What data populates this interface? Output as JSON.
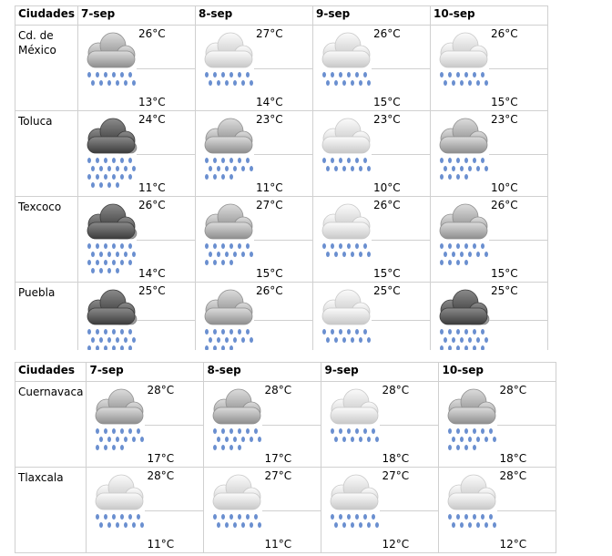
{
  "table1": {
    "header": [
      "Ciudades",
      "7-sep",
      "8-sep",
      "9-sep",
      "10-sep"
    ],
    "rows": [
      {
        "city": "Cd. de México",
        "days": [
          {
            "icon": "light-rain-cloud-icon",
            "shade": "light",
            "hi": "26°C",
            "lo": "13°C"
          },
          {
            "icon": "light-rain-cloud-icon",
            "shade": "white",
            "hi": "27°C",
            "lo": "14°C"
          },
          {
            "icon": "light-rain-cloud-icon",
            "shade": "white",
            "hi": "26°C",
            "lo": "15°C"
          },
          {
            "icon": "light-rain-cloud-icon",
            "shade": "white",
            "hi": "26°C",
            "lo": "15°C"
          }
        ]
      },
      {
        "city": "Toluca",
        "days": [
          {
            "icon": "heavy-rain-cloud-icon",
            "shade": "dark",
            "hi": "24°C",
            "lo": "11°C"
          },
          {
            "icon": "rain-cloud-icon",
            "shade": "light",
            "hi": "23°C",
            "lo": "11°C"
          },
          {
            "icon": "light-rain-cloud-icon",
            "shade": "white",
            "hi": "23°C",
            "lo": "10°C"
          },
          {
            "icon": "rain-cloud-icon",
            "shade": "light",
            "hi": "23°C",
            "lo": "10°C"
          }
        ]
      },
      {
        "city": "Texcoco",
        "days": [
          {
            "icon": "heavy-rain-cloud-icon",
            "shade": "dark",
            "hi": "26°C",
            "lo": "14°C"
          },
          {
            "icon": "rain-cloud-icon",
            "shade": "light",
            "hi": "27°C",
            "lo": "15°C"
          },
          {
            "icon": "light-rain-cloud-icon",
            "shade": "white",
            "hi": "26°C",
            "lo": "15°C"
          },
          {
            "icon": "rain-cloud-icon",
            "shade": "light",
            "hi": "26°C",
            "lo": "15°C"
          }
        ]
      },
      {
        "city": "Puebla",
        "days": [
          {
            "icon": "heavy-rain-cloud-icon",
            "shade": "dark",
            "hi": "25°C",
            "lo": "10°C"
          },
          {
            "icon": "rain-cloud-icon",
            "shade": "light",
            "hi": "26°C",
            "lo": "10°C"
          },
          {
            "icon": "light-rain-cloud-icon",
            "shade": "white",
            "hi": "25°C",
            "lo": "11°C"
          },
          {
            "icon": "heavy-rain-cloud-icon",
            "shade": "dark",
            "hi": "25°C",
            "lo": "11°C"
          }
        ]
      }
    ]
  },
  "table2": {
    "header": [
      "Ciudades",
      "7-sep",
      "8-sep",
      "9-sep",
      "10-sep"
    ],
    "rows": [
      {
        "city": "Cuernavaca",
        "days": [
          {
            "icon": "rain-cloud-icon",
            "shade": "light",
            "hi": "28°C",
            "lo": "17°C"
          },
          {
            "icon": "rain-cloud-icon",
            "shade": "light",
            "hi": "28°C",
            "lo": "17°C"
          },
          {
            "icon": "light-rain-cloud-icon",
            "shade": "white",
            "hi": "28°C",
            "lo": "18°C"
          },
          {
            "icon": "rain-cloud-icon",
            "shade": "light",
            "hi": "28°C",
            "lo": "18°C"
          }
        ]
      },
      {
        "city": "Tlaxcala",
        "days": [
          {
            "icon": "light-rain-cloud-icon",
            "shade": "white",
            "hi": "28°C",
            "lo": "11°C"
          },
          {
            "icon": "light-rain-cloud-icon",
            "shade": "white",
            "hi": "27°C",
            "lo": "11°C"
          },
          {
            "icon": "light-rain-cloud-icon",
            "shade": "white",
            "hi": "27°C",
            "lo": "12°C"
          },
          {
            "icon": "light-rain-cloud-icon",
            "shade": "white",
            "hi": "28°C",
            "lo": "12°C"
          }
        ]
      }
    ]
  },
  "colors": {
    "border": "#d0d0d0",
    "rain": "#6a8fd0",
    "cloud_dark": "#505050",
    "cloud_light": "#a8a8a8",
    "cloud_white": "#e6e6e6"
  }
}
